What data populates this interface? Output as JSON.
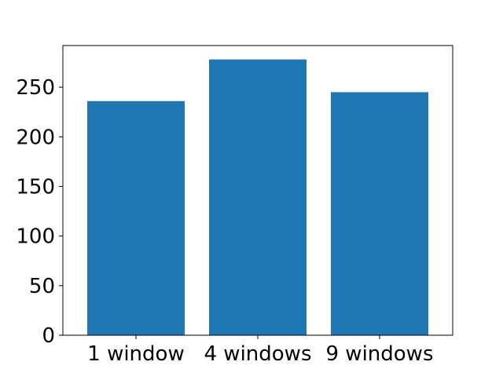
{
  "chart_data": {
    "type": "bar",
    "categories": [
      "1 window",
      "4 windows",
      "9 windows"
    ],
    "values": [
      236,
      278,
      245
    ],
    "title": "",
    "xlabel": "",
    "ylabel": "",
    "ylim": [
      0,
      292
    ],
    "yticks": [
      0,
      50,
      100,
      150,
      200,
      250
    ],
    "grid": false,
    "bar_color": "#1f77b4"
  }
}
